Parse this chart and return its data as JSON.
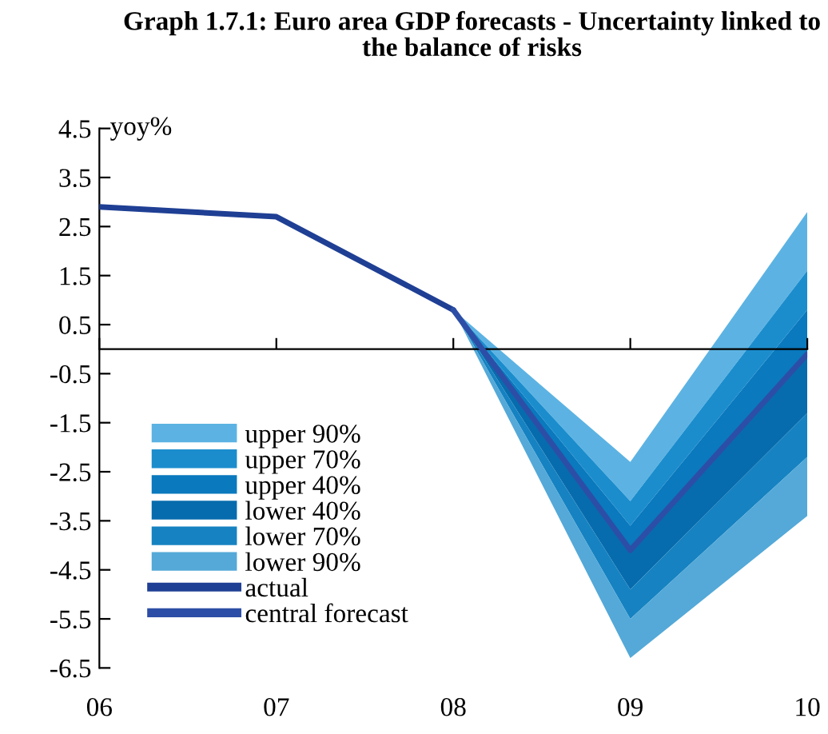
{
  "chart_data": {
    "type": "line",
    "title": "Graph 1.7.1: Euro area GDP forecasts - Uncertainty linked to the balance of risks",
    "ylabel": "yoy%",
    "categories": [
      "06",
      "07",
      "08",
      "09",
      "10"
    ],
    "series": [
      {
        "name": "upper 90%",
        "color": "#5cb3e3",
        "values": [
          null,
          null,
          null,
          null,
          null
        ],
        "lower": [
          null,
          null,
          0.8,
          -3.1,
          1.6
        ],
        "upper": [
          null,
          null,
          0.8,
          -2.3,
          2.8
        ]
      },
      {
        "name": "upper 70%",
        "color": "#1b8dcd",
        "values": [
          null,
          null,
          null,
          null,
          null
        ],
        "lower": [
          null,
          null,
          0.8,
          -3.6,
          0.8
        ],
        "upper": [
          null,
          null,
          0.8,
          -3.1,
          1.6
        ]
      },
      {
        "name": "upper 40%",
        "color": "#0a79be",
        "values": [
          null,
          null,
          null,
          null,
          null
        ],
        "lower": [
          null,
          null,
          0.8,
          -4.1,
          -0.1
        ],
        "upper": [
          null,
          null,
          0.8,
          -3.6,
          0.8
        ]
      },
      {
        "name": "lower 40%",
        "color": "#076cad",
        "values": [
          null,
          null,
          null,
          null,
          null
        ],
        "lower": [
          null,
          null,
          0.8,
          -4.9,
          -1.3
        ],
        "upper": [
          null,
          null,
          0.8,
          -4.1,
          -0.1
        ]
      },
      {
        "name": "lower 70%",
        "color": "#1682c1",
        "values": [
          null,
          null,
          null,
          null,
          null
        ],
        "lower": [
          null,
          null,
          0.8,
          -5.5,
          -2.2
        ],
        "upper": [
          null,
          null,
          0.8,
          -4.9,
          -1.3
        ]
      },
      {
        "name": "lower 90%",
        "color": "#54a9d8",
        "values": [
          null,
          null,
          null,
          null,
          null
        ],
        "lower": [
          null,
          null,
          0.8,
          -6.3,
          -3.4
        ],
        "upper": [
          null,
          null,
          0.8,
          -5.5,
          -2.2
        ]
      },
      {
        "name": "actual",
        "type": "line",
        "color": "#1f3f94",
        "values": [
          2.9,
          2.7,
          0.8,
          null,
          null
        ]
      },
      {
        "name": "central forecast",
        "type": "line",
        "color": "#2d4ea6",
        "values": [
          null,
          null,
          0.8,
          -4.1,
          -0.1
        ]
      }
    ],
    "ylim": [
      -6.5,
      4.5
    ],
    "yticks": [
      -6.5,
      -5.5,
      -4.5,
      -3.5,
      -2.5,
      -1.5,
      -0.5,
      0.5,
      1.5,
      2.5,
      3.5,
      4.5
    ],
    "grid": false,
    "legend": "bottom left"
  }
}
